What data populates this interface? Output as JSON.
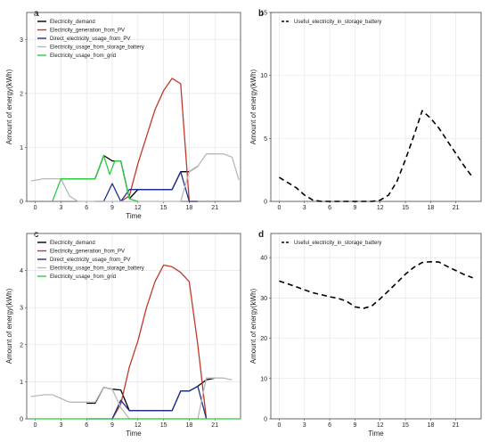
{
  "chart_data": [
    {
      "panel_label": "a",
      "type": "line",
      "xlabel": "Time",
      "ylabel": "Amount of energy(kWh)",
      "xlim": [
        -1,
        24
      ],
      "ylim": [
        0,
        3.5
      ],
      "xticks": [
        0,
        3,
        6,
        9,
        12,
        15,
        18,
        21
      ],
      "yticks": [
        0,
        1,
        2,
        3
      ],
      "grid": true,
      "legend_position": "top-left",
      "series": [
        {
          "name": "Electricity_demand",
          "color": "#000000",
          "style": "solid",
          "x": [
            3,
            5,
            6,
            7,
            8,
            9,
            10,
            11,
            12,
            13,
            14,
            15,
            16,
            17,
            18,
            19
          ],
          "y": [
            0.42,
            0.42,
            0.42,
            0.42,
            0.85,
            0.75,
            0.75,
            0.05,
            0.22,
            0.22,
            0.22,
            0.22,
            0.22,
            0.55,
            0.55,
            0.65
          ]
        },
        {
          "name": "Electricity_generation_from_PV",
          "color": "#c0392b",
          "style": "solid",
          "x": [
            10,
            11,
            12,
            13,
            14,
            15,
            16,
            17,
            18
          ],
          "y": [
            0,
            0.1,
            0.7,
            1.2,
            1.7,
            2.05,
            2.28,
            2.18,
            0
          ]
        },
        {
          "name": "Direct_electricity_usage_from_PV",
          "color": "#1f2f8f",
          "style": "solid",
          "x": [
            7,
            8,
            9,
            10,
            11,
            12,
            13,
            14,
            15,
            16,
            17,
            18,
            19
          ],
          "y": [
            0,
            0,
            0.33,
            0,
            0.22,
            0.22,
            0.22,
            0.22,
            0.22,
            0.22,
            0.55,
            0,
            0
          ]
        },
        {
          "name": "Electricity_usage_from_storage_battery",
          "color": "#b8b8b8",
          "style": "solid",
          "x": [
            -0.5,
            1,
            2,
            3,
            4,
            5,
            6,
            7,
            8,
            9,
            10,
            11,
            12,
            13,
            14,
            15,
            16,
            17,
            18,
            19,
            20,
            21,
            22,
            23,
            23.8
          ],
          "y": [
            0.38,
            0.42,
            0.42,
            0.42,
            0.1,
            0,
            0,
            0,
            0,
            0,
            0,
            0,
            0,
            0,
            0,
            0,
            0,
            0,
            0.55,
            0.65,
            0.88,
            0.88,
            0.88,
            0.82,
            0.4
          ]
        },
        {
          "name": "Electricity_usage_from_grid",
          "color": "#2ecc40",
          "style": "solid",
          "x": [
            2,
            3,
            3.5,
            4,
            5,
            6,
            7,
            8,
            8.7,
            9.3,
            10,
            11,
            12
          ],
          "y": [
            0,
            0.42,
            0.42,
            0.42,
            0.42,
            0.42,
            0.42,
            0.85,
            0.5,
            0.75,
            0.75,
            0.05,
            0
          ]
        }
      ]
    },
    {
      "panel_label": "b",
      "type": "line",
      "xlabel": "",
      "ylabel": "Amount of energy(kWh)",
      "xlim": [
        -1,
        24
      ],
      "ylim": [
        0,
        15
      ],
      "xticks": [
        0,
        3,
        6,
        9,
        12,
        15,
        18,
        21
      ],
      "yticks": [
        0,
        5,
        10,
        15
      ],
      "grid": true,
      "legend_position": "top-left",
      "series": [
        {
          "name": "Useful_electricity_in_storage_battery",
          "color": "#000000",
          "style": "dashed",
          "x": [
            0,
            1,
            2,
            3,
            4,
            5,
            6,
            7,
            8,
            9,
            10,
            11,
            12,
            13,
            14,
            15,
            16,
            17,
            18,
            19,
            20,
            21,
            22,
            23
          ],
          "y": [
            1.9,
            1.5,
            1.1,
            0.5,
            0.1,
            0,
            0,
            0,
            0,
            0,
            0,
            0,
            0.1,
            0.5,
            1.6,
            3.3,
            5.2,
            7.2,
            6.6,
            5.8,
            4.8,
            3.8,
            2.8,
            1.9
          ]
        }
      ]
    },
    {
      "panel_label": "c",
      "type": "line",
      "xlabel": "Time",
      "ylabel": "Amount of energy(kWh)",
      "xlim": [
        -1,
        24
      ],
      "ylim": [
        0,
        5
      ],
      "xticks": [
        0,
        3,
        6,
        9,
        12,
        15,
        18,
        21
      ],
      "yticks": [
        0,
        1,
        2,
        3,
        4
      ],
      "grid": true,
      "legend_position": "top-left",
      "series": [
        {
          "name": "Electricity_demand",
          "color": "#000000",
          "style": "solid",
          "x": [
            6,
            7,
            8,
            9,
            10,
            11,
            12,
            13,
            14,
            15,
            16,
            17,
            18,
            19,
            20,
            21
          ],
          "y": [
            0.42,
            0.42,
            0.85,
            0.8,
            0.78,
            0.22,
            0.22,
            0.22,
            0.22,
            0.22,
            0.22,
            0.75,
            0.75,
            0.88,
            1.05,
            1.1
          ]
        },
        {
          "name": "Electricity_generation_from_PV",
          "color": "#c0392b",
          "style": "solid",
          "x": [
            9,
            10,
            11,
            12,
            13,
            14,
            15,
            16,
            17,
            18,
            19,
            20
          ],
          "y": [
            0,
            0.4,
            1.4,
            2.1,
            3.0,
            3.7,
            4.15,
            4.1,
            3.95,
            3.7,
            2.0,
            0
          ]
        },
        {
          "name": "Direct_electricity_usage_from_PV",
          "color": "#1f2f8f",
          "style": "solid",
          "x": [
            6,
            7,
            8,
            9,
            10,
            11,
            12,
            13,
            14,
            15,
            16,
            17,
            18,
            19,
            20
          ],
          "y": [
            0,
            0,
            0,
            0,
            0.5,
            0.22,
            0.22,
            0.22,
            0.22,
            0.22,
            0.22,
            0.75,
            0.75,
            0.88,
            0
          ]
        },
        {
          "name": "Electricity_usage_from_storage_battery",
          "color": "#b8b8b8",
          "style": "solid",
          "x": [
            -0.5,
            1,
            2,
            3,
            4,
            5,
            6,
            7,
            8,
            9,
            10,
            11,
            12,
            13,
            14,
            15,
            16,
            17,
            18,
            19,
            20,
            21,
            22,
            23
          ],
          "y": [
            0.6,
            0.65,
            0.65,
            0.55,
            0.45,
            0.45,
            0.45,
            0.45,
            0.85,
            0.8,
            0.3,
            0,
            0,
            0,
            0,
            0,
            0,
            0,
            0,
            0,
            1.1,
            1.1,
            1.1,
            1.05
          ]
        },
        {
          "name": "Electricity_usage_from_grid",
          "color": "#2ecc40",
          "style": "solid",
          "x": [
            -0.5,
            24
          ],
          "y": [
            0,
            0
          ]
        }
      ]
    },
    {
      "panel_label": "d",
      "type": "line",
      "xlabel": "Time",
      "ylabel": "Amount of energy(kWh)",
      "xlim": [
        -1,
        24
      ],
      "ylim": [
        0,
        46
      ],
      "xticks": [
        0,
        3,
        6,
        9,
        12,
        15,
        18,
        21
      ],
      "yticks": [
        0,
        10,
        20,
        30,
        40
      ],
      "grid": true,
      "legend_position": "top-left",
      "series": [
        {
          "name": "Useful_electricity_in_storage_battery",
          "color": "#000000",
          "style": "dashed",
          "x": [
            0,
            1,
            2,
            3,
            4,
            5,
            6,
            7,
            8,
            9,
            10,
            11,
            12,
            13,
            14,
            15,
            16,
            17,
            18,
            19,
            20,
            21,
            22,
            23
          ],
          "y": [
            34.2,
            33.5,
            32.8,
            32.0,
            31.3,
            30.8,
            30.3,
            29.9,
            29.2,
            27.8,
            27.4,
            28.0,
            29.8,
            31.8,
            33.8,
            35.9,
            37.6,
            38.8,
            39.0,
            38.9,
            37.8,
            36.8,
            35.8,
            35.0
          ]
        }
      ]
    }
  ]
}
